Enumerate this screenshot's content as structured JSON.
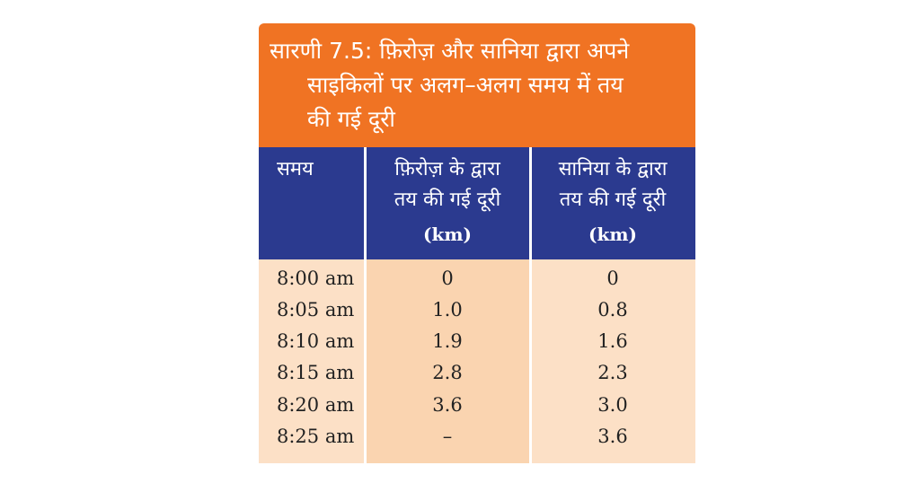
{
  "caption": {
    "line1": "सारणी 7.5: फ़िरोज़ और सानिया द्वारा अपने",
    "line2": "साइकिलों पर अलग–अलग समय में तय",
    "line3": "की गई दूरी"
  },
  "headers": {
    "time": "समय",
    "firoz_line1": "फ़िरोज़ के द्वारा",
    "firoz_line2": "तय की गई दूरी",
    "firoz_unit": "(km)",
    "saniya_line1": "सानिया के द्वारा",
    "saniya_line2": "तय की गई दूरी",
    "saniya_unit": "(km)"
  },
  "rows": [
    {
      "time": "8:00 am",
      "firoz": "0",
      "saniya": "0"
    },
    {
      "time": "8:05 am",
      "firoz": "1.0",
      "saniya": "0.8"
    },
    {
      "time": "8:10 am",
      "firoz": "1.9",
      "saniya": "1.6"
    },
    {
      "time": "8:15 am",
      "firoz": "2.8",
      "saniya": "2.3"
    },
    {
      "time": "8:20 am",
      "firoz": "3.6",
      "saniya": "3.0"
    },
    {
      "time": "8:25 am",
      "firoz": "–",
      "saniya": "3.6"
    }
  ],
  "colors": {
    "caption_bg": "#f07323",
    "header_bg": "#2b3a8f",
    "body_bg": "#fce0c6",
    "mid_col_bg": "#fad4b0"
  }
}
